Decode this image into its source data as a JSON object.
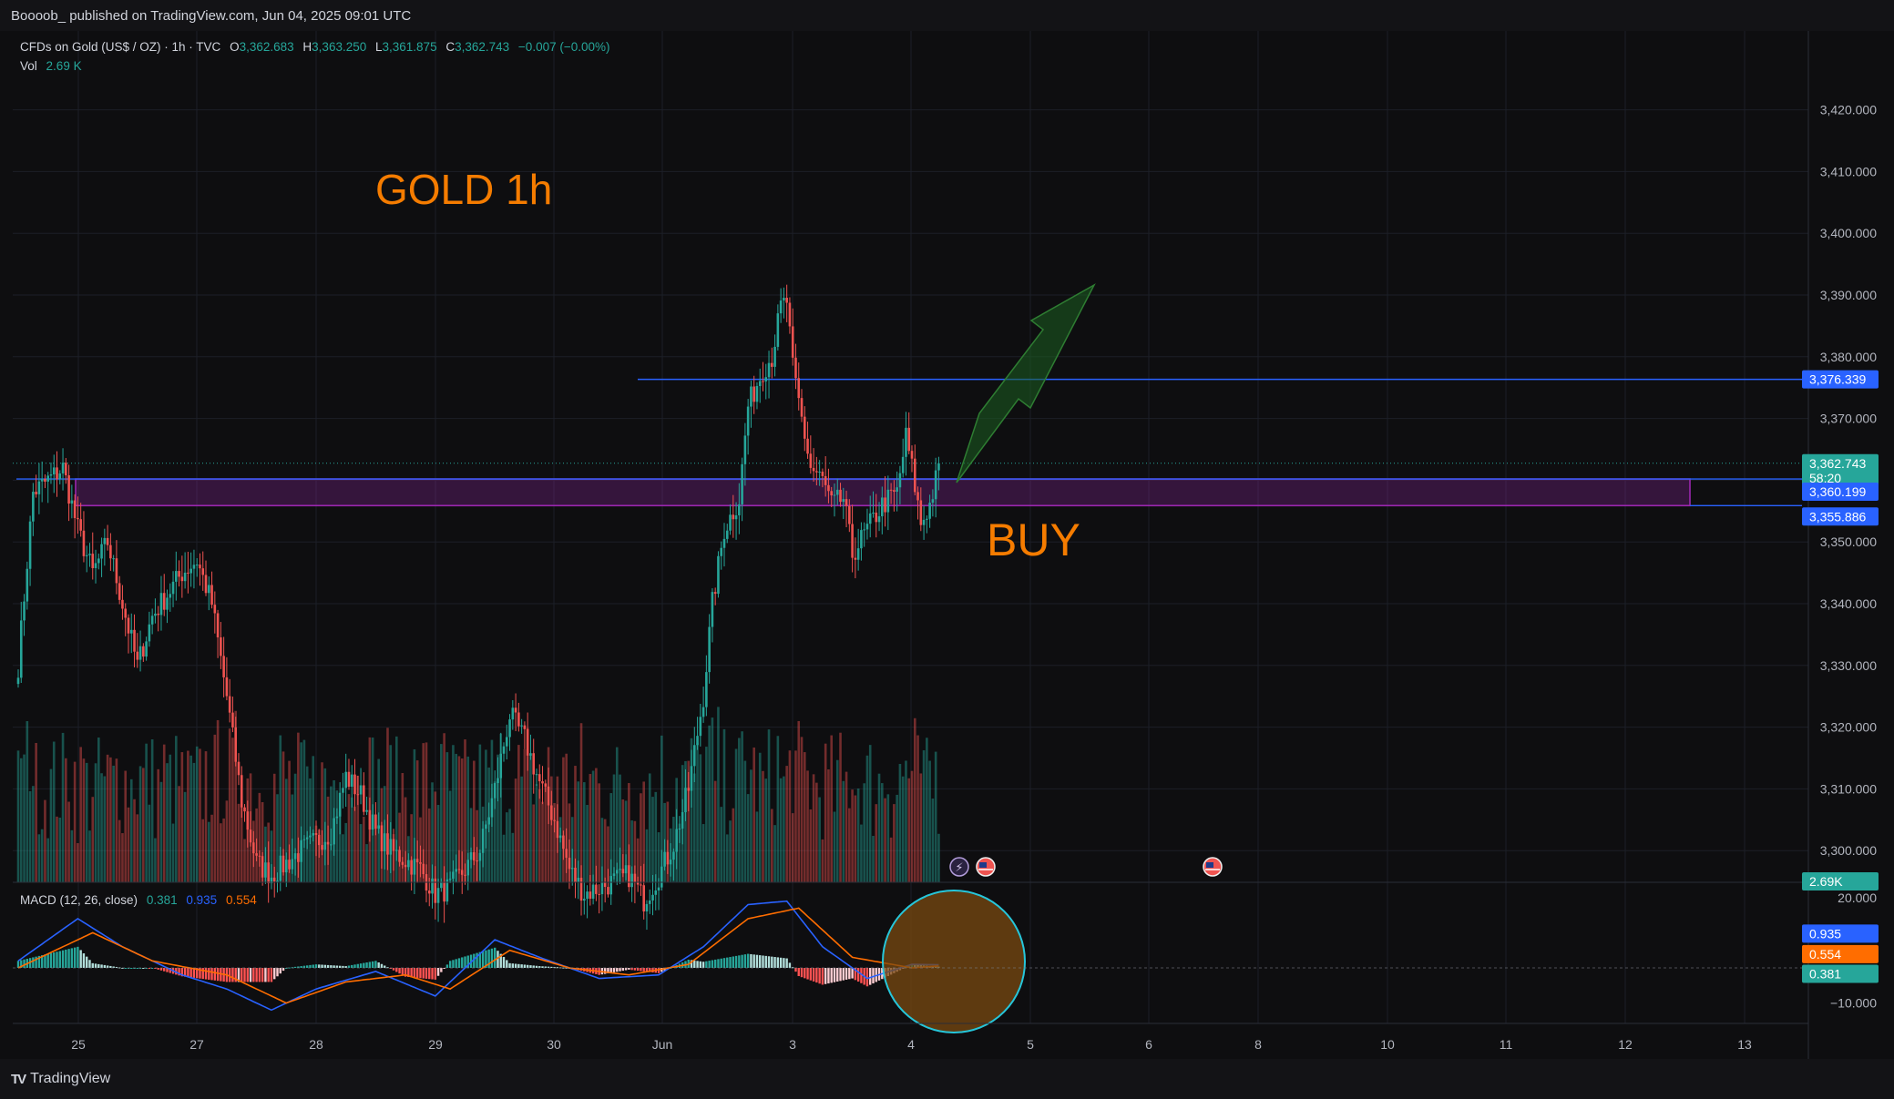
{
  "publish_line": "Boooob_ published on TradingView.com, Jun 04, 2025 09:01 UTC",
  "footer_brand": "TradingView",
  "legend": {
    "symbol": "CFDs on Gold (US$ / OZ) · 1h · TVC",
    "o_label": "O",
    "o": "3,362.683",
    "h_label": "H",
    "h": "3,363.250",
    "l_label": "L",
    "l": "3,361.875",
    "c_label": "C",
    "c": "3,362.743",
    "change": "−0.007 (−0.00%)",
    "vol_label": "Vol",
    "vol": "2.69 K"
  },
  "macd_legend": {
    "title": "MACD (12, 26, close)",
    "hist": "0.381",
    "macd": "0.935",
    "signal": "0.554"
  },
  "annotations": {
    "title": "GOLD 1h",
    "signal": "BUY"
  },
  "colors": {
    "up": "#26a69a",
    "down": "#ef5350",
    "zone": "#9c27b0",
    "level": "#2962ff",
    "annotation": "#f57c00",
    "arrow": "#1b5e20",
    "macd_line": "#2962ff",
    "signal_line": "#ff6d00",
    "circle_fill": "#7a4a10",
    "circle_stroke": "#26c6da"
  },
  "price_labels": {
    "level": "3,376.339",
    "last": "3,362.743",
    "countdown": "58:20",
    "zone_top": "3,360.199",
    "zone_bottom": "3,355.886",
    "volume": "2.69K",
    "macd": "0.935",
    "signal": "0.554",
    "hist": "0.381"
  },
  "chart_data": {
    "type": "candlestick",
    "timeframe": "1h",
    "y_axis": {
      "ticks": [
        3300,
        3310,
        3320,
        3330,
        3340,
        3350,
        3360,
        3370,
        3380,
        3390,
        3400,
        3410,
        3420
      ],
      "tick_labels": [
        "3,300.000",
        "3,310.000",
        "3,320.000",
        "3,330.000",
        "3,340.000",
        "3,350.000",
        "3,360.000",
        "3,370.000",
        "3,380.000",
        "3,390.000",
        "3,400.000",
        "3,410.000",
        "3,420.000"
      ]
    },
    "x_axis": {
      "tick_labels": [
        "25",
        "27",
        "28",
        "29",
        "30",
        "Jun",
        "3",
        "4",
        "5",
        "6",
        "8",
        "10",
        "11",
        "12",
        "13"
      ]
    },
    "levels": {
      "resistance": 3376.339,
      "zone_top": 3360.199,
      "zone_bottom": 3355.886,
      "last": 3362.743
    },
    "anchors": [
      {
        "t": 0,
        "p": 3330
      },
      {
        "t": 5,
        "p": 3358
      },
      {
        "t": 10,
        "p": 3360
      },
      {
        "t": 15,
        "p": 3362
      },
      {
        "t": 20,
        "p": 3352
      },
      {
        "t": 25,
        "p": 3345
      },
      {
        "t": 30,
        "p": 3350
      },
      {
        "t": 35,
        "p": 3340
      },
      {
        "t": 40,
        "p": 3330
      },
      {
        "t": 45,
        "p": 3338
      },
      {
        "t": 55,
        "p": 3345
      },
      {
        "t": 60,
        "p": 3347
      },
      {
        "t": 65,
        "p": 3340
      },
      {
        "t": 70,
        "p": 3325
      },
      {
        "t": 75,
        "p": 3308
      },
      {
        "t": 80,
        "p": 3298
      },
      {
        "t": 85,
        "p": 3296
      },
      {
        "t": 95,
        "p": 3300
      },
      {
        "t": 105,
        "p": 3303
      },
      {
        "t": 110,
        "p": 3312
      },
      {
        "t": 115,
        "p": 3309
      },
      {
        "t": 120,
        "p": 3303
      },
      {
        "t": 125,
        "p": 3300
      },
      {
        "t": 135,
        "p": 3297
      },
      {
        "t": 140,
        "p": 3293
      },
      {
        "t": 145,
        "p": 3294
      },
      {
        "t": 155,
        "p": 3300
      },
      {
        "t": 160,
        "p": 3310
      },
      {
        "t": 165,
        "p": 3322
      },
      {
        "t": 170,
        "p": 3318
      },
      {
        "t": 175,
        "p": 3311
      },
      {
        "t": 180,
        "p": 3305
      },
      {
        "t": 185,
        "p": 3297
      },
      {
        "t": 190,
        "p": 3293
      },
      {
        "t": 205,
        "p": 3296
      },
      {
        "t": 210,
        "p": 3292
      },
      {
        "t": 215,
        "p": 3296
      },
      {
        "t": 220,
        "p": 3301
      },
      {
        "t": 225,
        "p": 3310
      },
      {
        "t": 230,
        "p": 3325
      },
      {
        "t": 233,
        "p": 3340
      },
      {
        "t": 237,
        "p": 3352
      },
      {
        "t": 242,
        "p": 3357
      },
      {
        "t": 245,
        "p": 3372
      },
      {
        "t": 250,
        "p": 3378
      },
      {
        "t": 253,
        "p": 3380
      },
      {
        "t": 256,
        "p": 3388
      },
      {
        "t": 258,
        "p": 3389
      },
      {
        "t": 260,
        "p": 3378
      },
      {
        "t": 263,
        "p": 3370
      },
      {
        "t": 266,
        "p": 3362
      },
      {
        "t": 270,
        "p": 3360
      },
      {
        "t": 273,
        "p": 3356
      },
      {
        "t": 277,
        "p": 3357
      },
      {
        "t": 280,
        "p": 3348
      },
      {
        "t": 285,
        "p": 3352
      },
      {
        "t": 290,
        "p": 3356
      },
      {
        "t": 295,
        "p": 3358
      },
      {
        "t": 298,
        "p": 3367
      },
      {
        "t": 300,
        "p": 3362
      },
      {
        "t": 303,
        "p": 3353
      },
      {
        "t": 306,
        "p": 3356
      },
      {
        "t": 309,
        "p": 3362
      }
    ],
    "macd": {
      "hist": 0.381,
      "macd": 0.935,
      "signal": 0.554,
      "axis_ticks": [
        20,
        -10
      ],
      "axis_tick_labels": [
        "20.000",
        "−10.000"
      ],
      "macd_anchors": [
        {
          "t": 0,
          "p": 2
        },
        {
          "t": 20,
          "p": 14
        },
        {
          "t": 35,
          "p": 6
        },
        {
          "t": 55,
          "p": -2
        },
        {
          "t": 70,
          "p": -6
        },
        {
          "t": 85,
          "p": -12
        },
        {
          "t": 100,
          "p": -6
        },
        {
          "t": 120,
          "p": -1
        },
        {
          "t": 140,
          "p": -8
        },
        {
          "t": 160,
          "p": 8
        },
        {
          "t": 175,
          "p": 3
        },
        {
          "t": 195,
          "p": -3
        },
        {
          "t": 215,
          "p": -2
        },
        {
          "t": 230,
          "p": 6
        },
        {
          "t": 245,
          "p": 18
        },
        {
          "t": 258,
          "p": 19
        },
        {
          "t": 270,
          "p": 6
        },
        {
          "t": 285,
          "p": -3
        },
        {
          "t": 300,
          "p": 1
        },
        {
          "t": 309,
          "p": 0.9
        }
      ],
      "signal_anchors": [
        {
          "t": 0,
          "p": 0
        },
        {
          "t": 25,
          "p": 10
        },
        {
          "t": 45,
          "p": 2
        },
        {
          "t": 70,
          "p": -2
        },
        {
          "t": 90,
          "p": -10
        },
        {
          "t": 110,
          "p": -4
        },
        {
          "t": 130,
          "p": -2
        },
        {
          "t": 145,
          "p": -6
        },
        {
          "t": 165,
          "p": 5
        },
        {
          "t": 185,
          "p": 0
        },
        {
          "t": 205,
          "p": -2
        },
        {
          "t": 225,
          "p": 1
        },
        {
          "t": 245,
          "p": 14
        },
        {
          "t": 262,
          "p": 17
        },
        {
          "t": 280,
          "p": 3
        },
        {
          "t": 300,
          "p": 0
        },
        {
          "t": 309,
          "p": 0.55
        }
      ]
    }
  }
}
